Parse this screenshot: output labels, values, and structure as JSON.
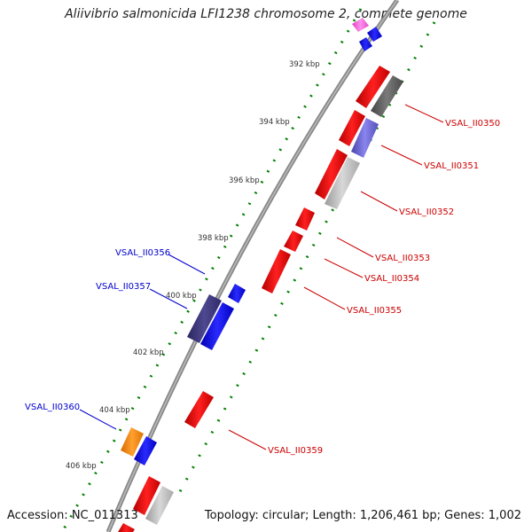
{
  "title": "Aliivibrio salmonicida LFI1238 chromosome 2, complete genome",
  "accession_label": "Accession: NC_011313",
  "summary_label": "Topology: circular; Length: 1,206,461 bp; Genes: 1,002",
  "colors": {
    "backbone": "#777777",
    "forward_gene": "#ff0000",
    "reverse_gene": "#0000ff",
    "tick": "#008000",
    "forward_label": "#cc0000",
    "reverse_label": "#0000cc"
  },
  "ticks": [
    "392 kbp",
    "394 kbp",
    "396 kbp",
    "398 kbp",
    "400 kbp",
    "402 kbp",
    "404 kbp",
    "406 kbp"
  ],
  "gene_labels": [
    {
      "text": "VSAL_II0350",
      "strand": "forward"
    },
    {
      "text": "VSAL_II0351",
      "strand": "forward"
    },
    {
      "text": "VSAL_II0352",
      "strand": "forward"
    },
    {
      "text": "VSAL_II0353",
      "strand": "forward"
    },
    {
      "text": "VSAL_II0354",
      "strand": "forward"
    },
    {
      "text": "VSAL_II0355",
      "strand": "forward"
    },
    {
      "text": "VSAL_II0356",
      "strand": "reverse"
    },
    {
      "text": "VSAL_II0357",
      "strand": "reverse"
    },
    {
      "text": "VSAL_II0359",
      "strand": "forward"
    },
    {
      "text": "VSAL_II0360",
      "strand": "reverse"
    }
  ]
}
